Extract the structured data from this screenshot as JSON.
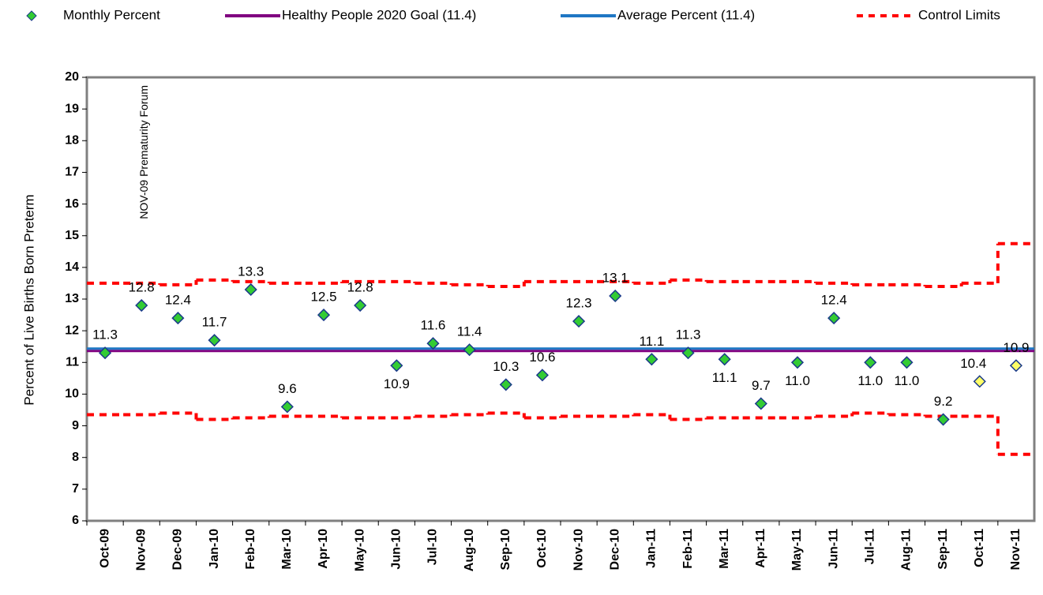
{
  "chart_data": {
    "type": "control",
    "y_axis_label": "Percent of Live Births Born Preterm",
    "annotation": {
      "text": "NOV-09 Prematurity Forum",
      "category": "Nov-09"
    },
    "categories": [
      "Oct-09",
      "Nov-09",
      "Dec-09",
      "Jan-10",
      "Feb-10",
      "Mar-10",
      "Apr-10",
      "May-10",
      "Jun-10",
      "Jul-10",
      "Aug-10",
      "Sep-10",
      "Oct-10",
      "Nov-10",
      "Dec-10",
      "Jan-11",
      "Feb-11",
      "Mar-11",
      "Apr-11",
      "May-11",
      "Jun-11",
      "Jul-11",
      "Aug-11",
      "Sep-11",
      "Oct-11",
      "Nov-11"
    ],
    "series": [
      {
        "name": "Monthly Percent",
        "color": "#33cc33",
        "point_colors": [
          "#33cc33",
          "#33cc33",
          "#33cc33",
          "#33cc33",
          "#33cc33",
          "#33cc33",
          "#33cc33",
          "#33cc33",
          "#33cc33",
          "#33cc33",
          "#33cc33",
          "#33cc33",
          "#33cc33",
          "#33cc33",
          "#33cc33",
          "#33cc33",
          "#33cc33",
          "#33cc33",
          "#33cc33",
          "#33cc33",
          "#33cc33",
          "#33cc33",
          "#33cc33",
          "#33cc33",
          "#ffff66",
          "#ffff66"
        ],
        "values": [
          11.3,
          12.8,
          12.4,
          11.7,
          13.3,
          9.6,
          12.5,
          12.8,
          10.9,
          11.6,
          11.4,
          10.3,
          10.6,
          12.3,
          13.1,
          11.1,
          11.3,
          11.1,
          9.7,
          11.0,
          12.4,
          11.0,
          11.0,
          9.2,
          10.4,
          10.9
        ],
        "value_labels": [
          "11.3",
          "12.8",
          "12.4",
          "11.7",
          "13.3",
          "9.6",
          "12.5",
          "12.8",
          "10.9",
          "11.6",
          "11.4",
          "10.3",
          "10.6",
          "12.3",
          "13.1",
          "11.1",
          "11.3",
          "11.1",
          "9.7",
          "11.0",
          "12.4",
          "11.0",
          "11.0",
          "9.2",
          "10.4",
          "10.9"
        ]
      },
      {
        "name": "Healthy People 2020 Goal (11.4)",
        "color": "#800080",
        "value": 11.4
      },
      {
        "name": "Average Percent (11.4)",
        "color": "#1f77c4",
        "value": 11.4
      },
      {
        "name": "Control Limits",
        "color": "#ff0000",
        "upper": [
          13.5,
          13.5,
          13.45,
          13.6,
          13.55,
          13.5,
          13.5,
          13.55,
          13.55,
          13.5,
          13.45,
          13.4,
          13.55,
          13.55,
          13.55,
          13.5,
          13.6,
          13.55,
          13.55,
          13.55,
          13.5,
          13.45,
          13.45,
          13.4,
          13.5,
          14.75
        ],
        "lower": [
          9.35,
          9.35,
          9.4,
          9.2,
          9.25,
          9.3,
          9.3,
          9.25,
          9.25,
          9.3,
          9.35,
          9.4,
          9.25,
          9.3,
          9.3,
          9.35,
          9.2,
          9.25,
          9.25,
          9.25,
          9.3,
          9.4,
          9.35,
          9.3,
          9.3,
          8.1
        ]
      }
    ],
    "ylim": [
      6,
      20
    ],
    "yticks": [
      6,
      7,
      8,
      9,
      10,
      11,
      12,
      13,
      14,
      15,
      16,
      17,
      18,
      19,
      20
    ]
  }
}
